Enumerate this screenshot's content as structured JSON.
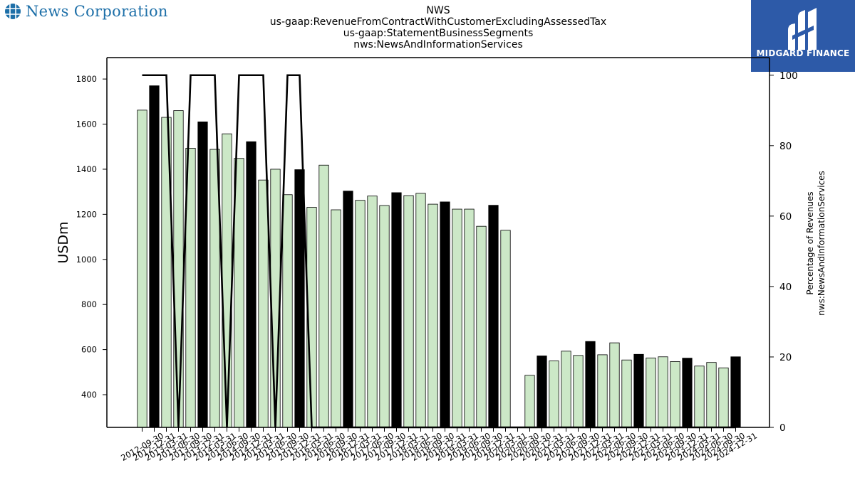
{
  "header": {
    "left_logo_text": "News Corporation",
    "left_logo_icon": "globe-icon",
    "right_logo_text": "MIDGARD FINANCE",
    "right_logo_icon": "midgard-emblem-icon"
  },
  "titles": [
    "NWS",
    "us-gaap:RevenueFromContractWithCustomerExcludingAssessedTax",
    "us-gaap:StatementBusinessSegments",
    "nws:NewsAndInformationServices"
  ],
  "colors": {
    "bar_light": "#cce8c7",
    "bar_dark": "#000000",
    "line": "#000000"
  },
  "chart_data": {
    "type": "bar",
    "title": "NWS us-gaap:RevenueFromContractWithCustomerExcludingAssessedTax us-gaap:StatementBusinessSegments nws:NewsAndInformationServices",
    "xlabel": "",
    "ylabel": "USDm",
    "y2label": "Percentage of Revenues nws:NewsAndInformationServices",
    "ylim": [
      255,
      1895
    ],
    "y2lim": [
      0,
      105
    ],
    "yticks": [
      400,
      600,
      800,
      1000,
      1200,
      1400,
      1600,
      1800
    ],
    "y2ticks": [
      0,
      20,
      40,
      60,
      80,
      100
    ],
    "grid": false,
    "categories": [
      "2012-09-30",
      "2012-12-31",
      "2013-03-31",
      "2013-06-30",
      "2013-09-30",
      "2013-12-31",
      "2014-03-31",
      "2014-06-30",
      "2014-09-30",
      "2014-12-31",
      "2015-03-31",
      "2015-06-30",
      "2015-09-30",
      "2015-12-31",
      "2016-03-31",
      "2016-06-30",
      "2016-09-30",
      "2016-12-31",
      "2017-03-31",
      "2017-06-30",
      "2017-09-30",
      "2017-12-31",
      "2018-03-31",
      "2018-06-30",
      "2018-09-30",
      "2018-12-31",
      "2019-03-31",
      "2019-06-30",
      "2019-09-30",
      "2019-12-31",
      "2020-03-31",
      "2020-06-30",
      "2020-09-30",
      "2020-12-31",
      "2021-03-31",
      "2021-06-30",
      "2021-09-30",
      "2021-12-31",
      "2022-03-31",
      "2022-06-30",
      "2022-09-30",
      "2022-12-31",
      "2023-03-31",
      "2023-06-30",
      "2023-09-30",
      "2023-12-31",
      "2024-03-31",
      "2024-06-30",
      "2024-09-30",
      "2024-12-31"
    ],
    "series": [
      {
        "type": "bar",
        "values": [
          1662,
          1770,
          1630,
          1660,
          1493,
          1610,
          1488,
          1557,
          1448,
          1522,
          1352,
          1400,
          1287,
          1398,
          1231,
          1418,
          1220,
          1303,
          1262,
          1281,
          1239,
          1296,
          1283,
          1293,
          1245,
          1255,
          1223,
          1223,
          1147,
          1240,
          1129,
          null,
          486,
          572,
          550,
          593,
          574,
          636,
          577,
          630,
          554,
          579,
          563,
          568,
          547,
          562,
          527,
          543,
          519,
          568
        ],
        "dark": [
          false,
          true,
          false,
          false,
          false,
          true,
          false,
          false,
          false,
          true,
          false,
          false,
          false,
          true,
          false,
          false,
          false,
          true,
          false,
          false,
          false,
          true,
          false,
          false,
          false,
          true,
          false,
          false,
          false,
          true,
          false,
          false,
          false,
          true,
          false,
          false,
          false,
          true,
          false,
          false,
          false,
          true,
          false,
          false,
          false,
          true,
          false,
          false,
          false,
          true
        ]
      },
      {
        "type": "line",
        "axis": "right",
        "values": [
          100,
          100,
          100,
          0,
          100,
          100,
          100,
          0,
          100,
          100,
          100,
          0,
          100,
          100,
          0,
          0,
          0,
          0,
          0,
          0,
          0,
          0,
          0,
          0,
          0,
          0,
          0,
          0,
          0,
          0,
          0,
          0,
          0,
          0,
          0,
          0,
          0,
          0,
          0,
          0,
          0,
          0,
          0,
          0,
          0,
          0,
          0,
          0,
          0,
          0
        ]
      }
    ]
  }
}
